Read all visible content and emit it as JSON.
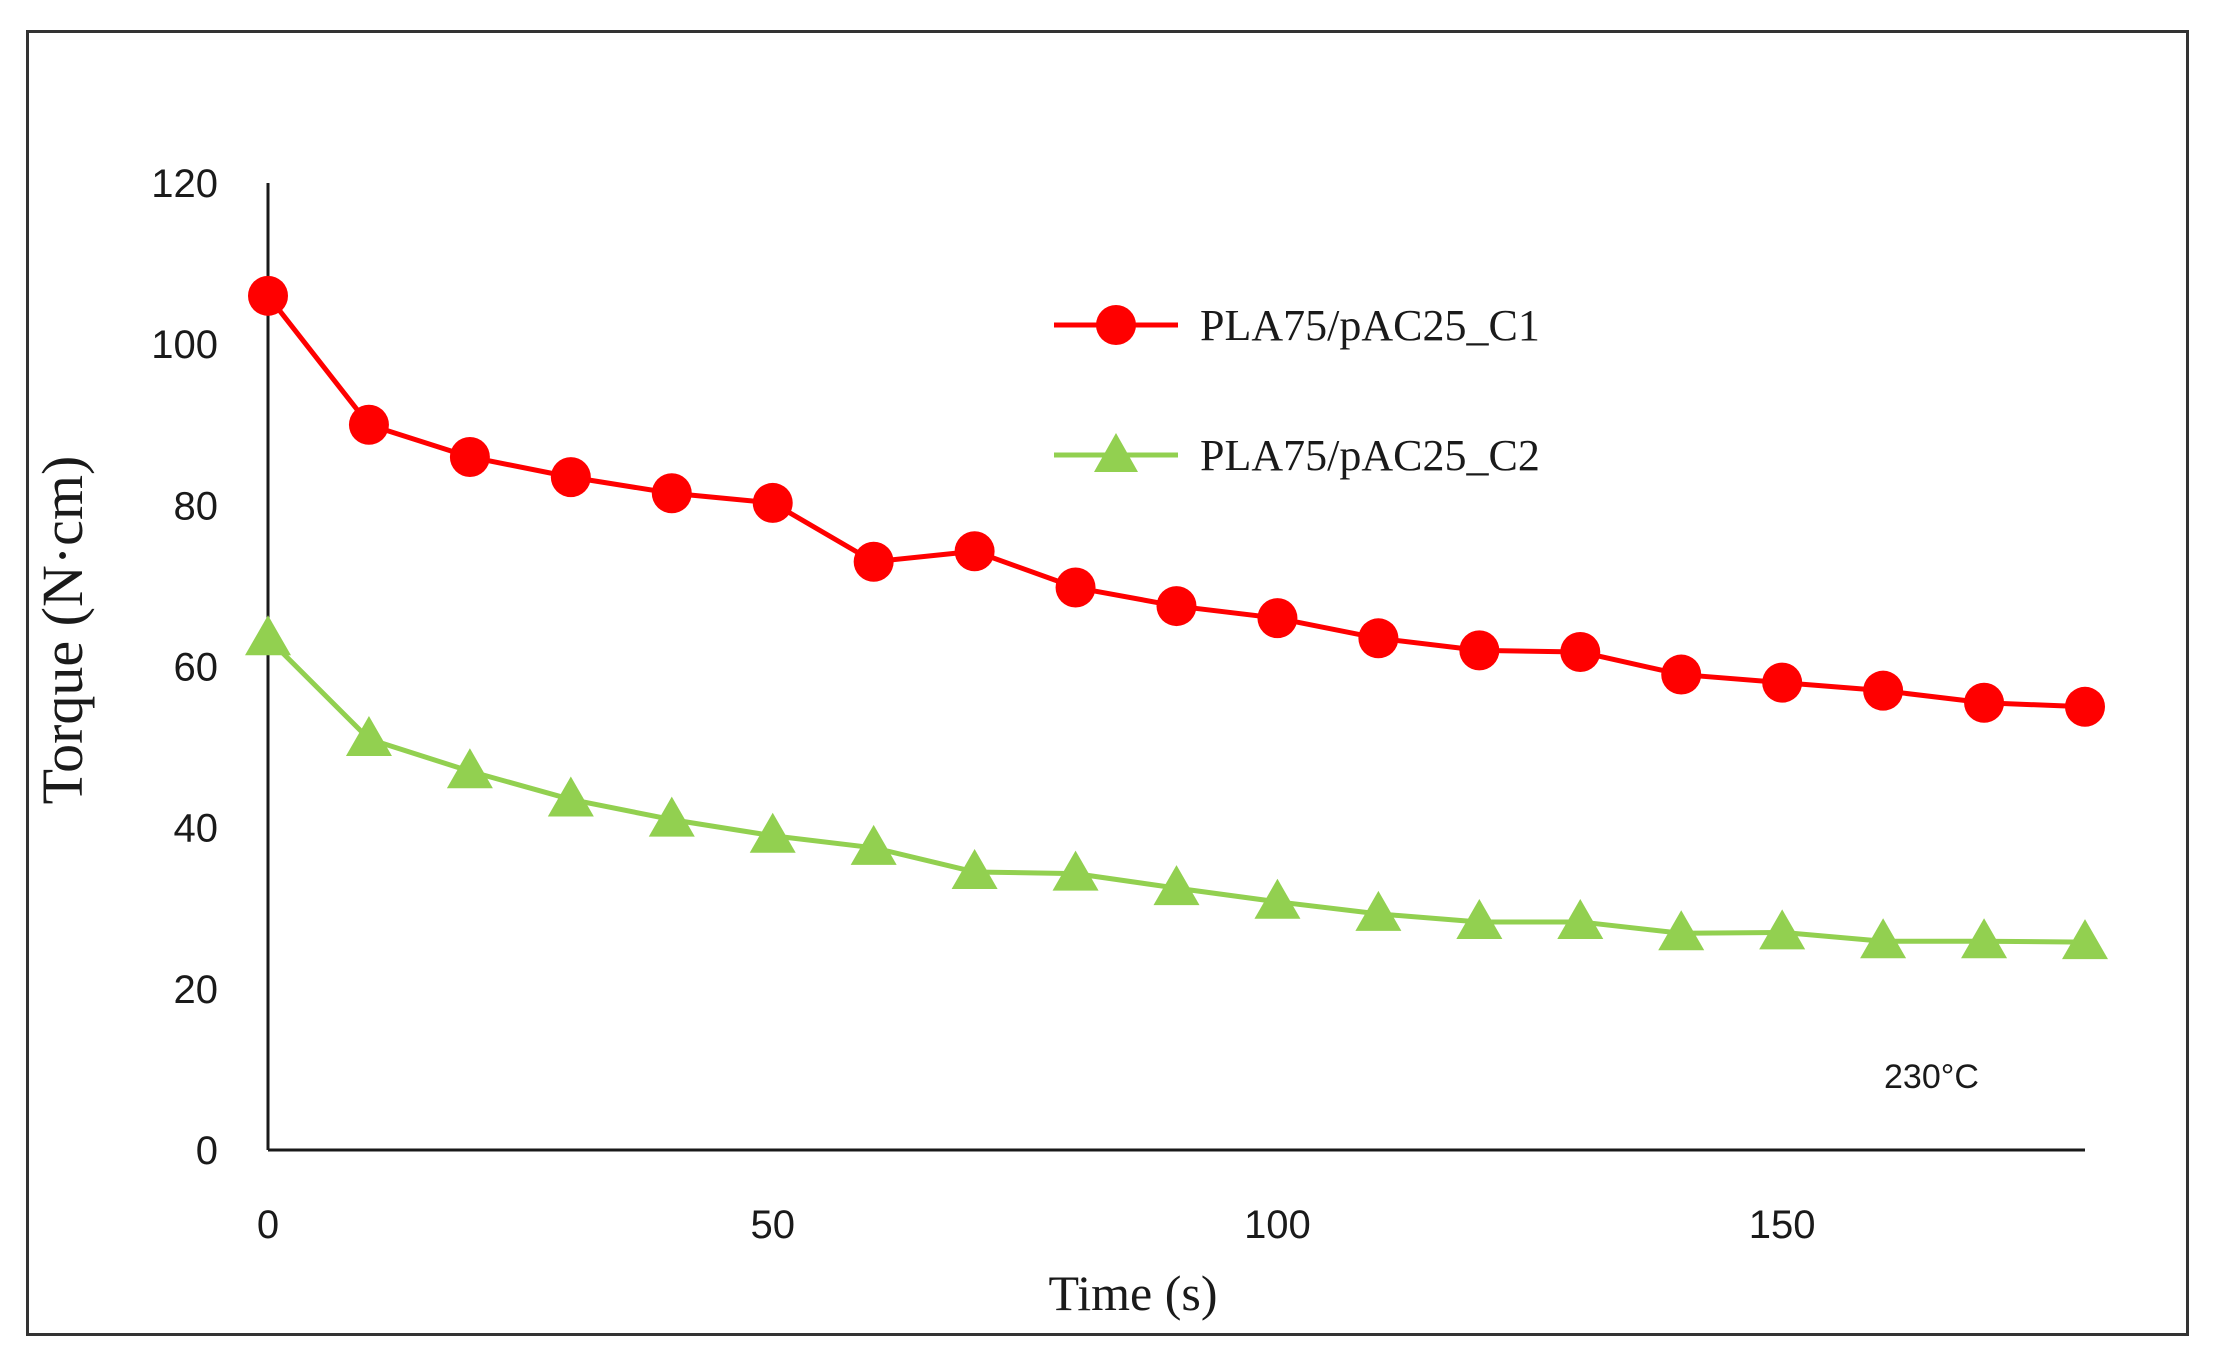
{
  "chart_data": {
    "type": "line",
    "title": "",
    "xlabel": "Time (s)",
    "ylabel": "Torque (N·cm)",
    "xlim": [
      0,
      180
    ],
    "ylim": [
      0,
      120
    ],
    "xticks": [
      0,
      50,
      100,
      150
    ],
    "yticks": [
      0,
      20,
      40,
      60,
      80,
      100,
      120
    ],
    "grid": false,
    "legend_position": "top-right",
    "annotation": "230°C",
    "x": [
      0,
      10,
      20,
      30,
      40,
      50,
      60,
      70,
      80,
      90,
      100,
      110,
      120,
      130,
      140,
      150,
      160,
      170,
      180
    ],
    "series": [
      {
        "name": "PLA75/pAC25_C1",
        "color": "#ff0000",
        "marker": "circle",
        "values": [
          106,
          90,
          86,
          83.5,
          81.5,
          80.3,
          73,
          74.3,
          69.8,
          67.5,
          66,
          63.5,
          62,
          61.8,
          59,
          58,
          57,
          55.5,
          55
        ]
      },
      {
        "name": "PLA75/pAC25_C2",
        "color": "#92d050",
        "marker": "triangle",
        "values": [
          63.5,
          51,
          47,
          43.5,
          41,
          39,
          37.5,
          34.5,
          34.3,
          32.5,
          30.8,
          29.3,
          28.3,
          28.3,
          26.9,
          27,
          25.9,
          25.9,
          25.8
        ]
      }
    ]
  }
}
